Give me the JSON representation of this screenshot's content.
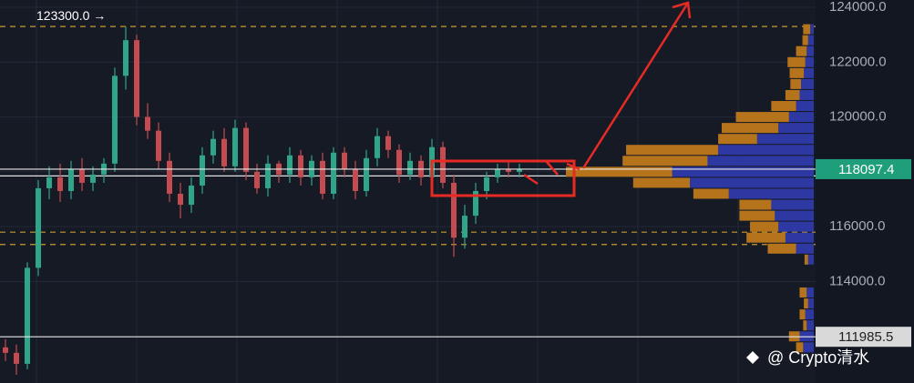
{
  "chart_data": {
    "type": "candlestick",
    "open": [
      111600,
      111400,
      111000,
      114500,
      117400,
      117800,
      117300,
      118100,
      117600,
      117900,
      118300,
      121500,
      122800,
      120000,
      119500,
      118400,
      117200,
      116800,
      117500,
      118600,
      119200,
      118200,
      119600,
      118000,
      117400,
      118300,
      117900,
      118600,
      117800,
      118400,
      117200,
      118700,
      118100,
      117300,
      118500,
      119300,
      118800,
      117900,
      118400,
      117800,
      118900,
      117600,
      115600,
      116400,
      117300,
      117800,
      118100,
      118000
    ],
    "high": [
      111900,
      111700,
      114700,
      117700,
      118200,
      118300,
      118400,
      118500,
      118200,
      118500,
      121800,
      123300,
      123000,
      120500,
      119800,
      118700,
      117600,
      117800,
      118900,
      119500,
      119600,
      119900,
      119800,
      118300,
      118600,
      118400,
      118900,
      118800,
      118600,
      118700,
      118900,
      118900,
      118400,
      118800,
      119600,
      119500,
      119000,
      118700,
      118600,
      119200,
      119100,
      117900,
      116800,
      117600,
      118000,
      118300,
      118400,
      118300
    ],
    "low": [
      111100,
      110600,
      110800,
      114200,
      117000,
      116900,
      117000,
      117300,
      117300,
      117600,
      118000,
      121000,
      119700,
      119200,
      118100,
      116900,
      116300,
      116500,
      117200,
      118300,
      118000,
      118000,
      117700,
      117200,
      117100,
      117600,
      117600,
      117500,
      117500,
      117000,
      117000,
      117800,
      117000,
      117100,
      118200,
      118500,
      117600,
      117700,
      117500,
      117600,
      117400,
      114900,
      115200,
      116100,
      117000,
      117600,
      117800,
      117800
    ],
    "close": [
      111400,
      111000,
      114500,
      117400,
      117800,
      117300,
      118100,
      117600,
      117900,
      118300,
      121500,
      122800,
      120000,
      119500,
      118400,
      117200,
      116800,
      117500,
      118600,
      119200,
      118200,
      119600,
      118000,
      117400,
      118300,
      117900,
      118600,
      117800,
      118400,
      117200,
      118700,
      118100,
      117300,
      118500,
      119300,
      118800,
      117900,
      118400,
      117800,
      118900,
      117600,
      115600,
      116400,
      117300,
      117800,
      118100,
      118000,
      118100
    ],
    "up_color": "#2fa58a",
    "down_color": "#c44b4f",
    "ylim": [
      110300,
      124265
    ],
    "yticks": [
      {
        "value": 124000,
        "label": "124000.0"
      },
      {
        "value": 122000,
        "label": "122000.0"
      },
      {
        "value": 120000,
        "label": "120000.0"
      },
      {
        "value": 118000,
        "label": "118000.0"
      },
      {
        "value": 116000,
        "label": "116000.0"
      },
      {
        "value": 114000,
        "label": "114000.0"
      }
    ],
    "grid": true,
    "high_marker": {
      "value": 123300,
      "label": "123300.0 →"
    },
    "dashed_levels": [
      123300,
      115800,
      115350
    ],
    "solid_levels": [
      117850
    ],
    "price_lines": [
      {
        "value": 118097.4,
        "label": "118097.4",
        "color": "#1e9e7a"
      },
      {
        "value": 111985.5,
        "label": "111985.5",
        "color": "#d9d9d9"
      }
    ],
    "profile": {
      "levels": [
        123200,
        122800,
        122400,
        122000,
        121600,
        121200,
        120800,
        120400,
        120000,
        119600,
        119200,
        118800,
        118400,
        118000,
        117600,
        117200,
        116800,
        116400,
        116000,
        115600,
        115200,
        114800,
        113600,
        113200,
        112800,
        112400,
        112000,
        111600
      ],
      "series": [
        {
          "color": "#2d38a3",
          "values": [
            5,
            8,
            10,
            12,
            14,
            18,
            20,
            25,
            35,
            50,
            80,
            135,
            150,
            200,
            175,
            120,
            60,
            55,
            50,
            40,
            25,
            8,
            10,
            8,
            12,
            10,
            20,
            15
          ]
        },
        {
          "color": "#b5731c",
          "values": [
            10,
            8,
            15,
            25,
            20,
            15,
            20,
            35,
            75,
            80,
            55,
            130,
            120,
            150,
            80,
            50,
            45,
            50,
            40,
            55,
            40,
            5,
            10,
            6,
            8,
            5,
            15,
            10
          ]
        }
      ]
    },
    "watermark": "@ Crypto清水"
  }
}
